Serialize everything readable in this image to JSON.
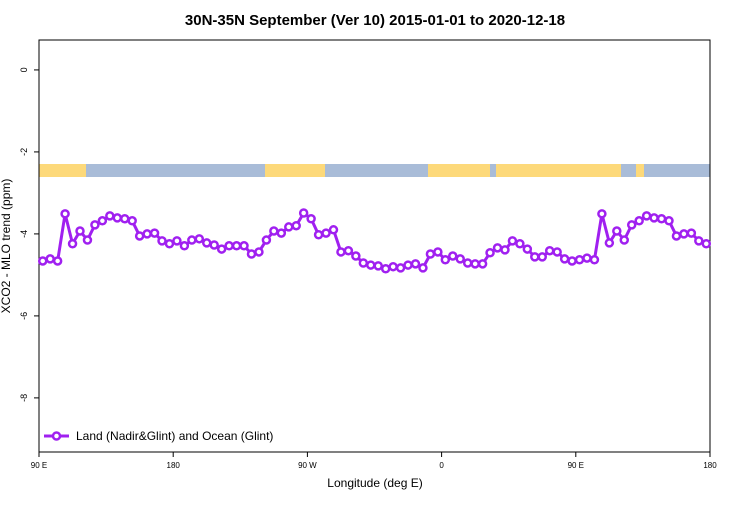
{
  "chart_data": {
    "type": "line",
    "title": "30N-35N September (Ver 10)   2015-01-01 to 2020-12-18",
    "x_label": "Longitude (deg E)",
    "y_label": "XCO2 - MLO trend (ppm)",
    "xlim": [
      90,
      540
    ],
    "ylim": [
      -9.32,
      0.73
    ],
    "xticks": [
      {
        "value": 90,
        "label": "90 E"
      },
      {
        "value": 180,
        "label": "180"
      },
      {
        "value": 270,
        "label": "90 W"
      },
      {
        "value": 360,
        "label": "0"
      },
      {
        "value": 450,
        "label": "90 E"
      },
      {
        "value": 540,
        "label": "180"
      }
    ],
    "yticks": [
      0,
      -2,
      -4,
      -6,
      -8
    ],
    "legend_position": "bottomleft",
    "x": [
      92.5,
      97.5,
      102.5,
      107.5,
      112.5,
      117.5,
      122.5,
      127.5,
      132.5,
      137.5,
      142.5,
      147.5,
      152.5,
      157.5,
      162.5,
      167.5,
      172.5,
      177.5,
      182.5,
      187.5,
      192.5,
      197.5,
      202.5,
      207.5,
      212.5,
      217.5,
      222.5,
      227.5,
      232.5,
      237.5,
      242.5,
      247.5,
      252.5,
      257.5,
      262.5,
      267.5,
      272.5,
      277.5,
      282.5,
      287.5,
      292.5,
      297.5,
      302.5,
      307.5,
      312.5,
      317.5,
      322.5,
      327.5,
      332.5,
      337.5,
      342.5,
      347.5,
      352.5,
      357.5,
      362.5,
      367.5,
      372.5,
      377.5,
      382.5,
      387.5,
      392.5,
      397.5,
      402.5,
      407.5,
      412.5,
      417.5,
      422.5,
      427.5,
      432.5,
      437.5,
      442.5,
      447.5,
      452.5,
      457.5,
      462.5,
      467.5,
      472.5,
      477.5,
      482.5,
      487.5,
      492.5,
      497.5,
      502.5,
      507.5,
      512.5,
      517.5,
      522.5,
      527.5,
      532.5,
      537.5
    ],
    "series": [
      {
        "name": "Land (Nadir&Glint) and Ocean (Glint)",
        "color": "#a020f0",
        "values": [
          -4.66,
          -4.61,
          -4.66,
          -3.51,
          -4.24,
          -3.93,
          -4.15,
          -3.78,
          -3.68,
          -3.56,
          -3.61,
          -3.63,
          -3.68,
          -4.05,
          -4.0,
          -3.98,
          -4.17,
          -4.24,
          -4.17,
          -4.29,
          -4.15,
          -4.12,
          -4.22,
          -4.27,
          -4.37,
          -4.29,
          -4.29,
          -4.29,
          -4.49,
          -4.44,
          -4.15,
          -3.93,
          -3.98,
          -3.83,
          -3.8,
          -3.49,
          -3.63,
          -4.02,
          -3.98,
          -3.9,
          -4.44,
          -4.41,
          -4.54,
          -4.71,
          -4.76,
          -4.78,
          -4.85,
          -4.8,
          -4.83,
          -4.76,
          -4.73,
          -4.83,
          -4.49,
          -4.44,
          -4.63,
          -4.54,
          -4.61,
          -4.71,
          -4.73,
          -4.73,
          -4.46,
          -4.34,
          -4.39,
          -4.17,
          -4.24,
          -4.37,
          -4.56,
          -4.56,
          -4.41,
          -4.44,
          -4.61,
          -4.66,
          -4.63,
          -4.59,
          -4.63,
          -3.51,
          -4.22,
          -3.93,
          -4.15,
          -3.78,
          -3.68,
          -3.56,
          -3.61,
          -3.63,
          -3.68,
          -4.05,
          -4.0,
          -3.98,
          -4.17,
          -4.24
        ]
      }
    ]
  }
}
